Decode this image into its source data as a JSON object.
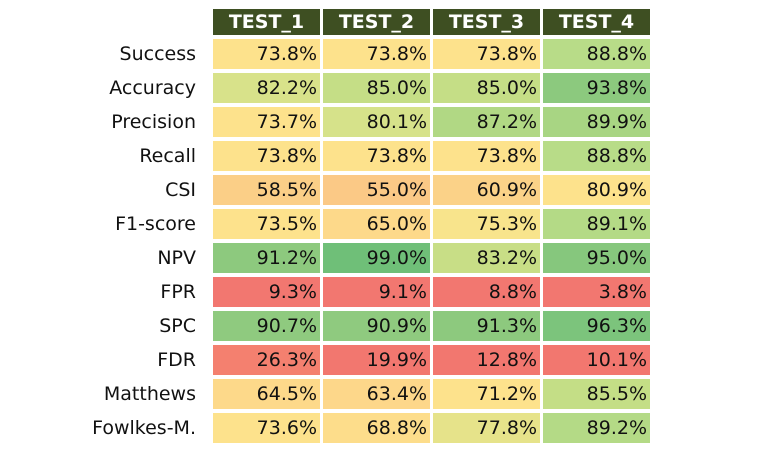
{
  "columns": [
    "TEST_1",
    "TEST_2",
    "TEST_3",
    "TEST_4"
  ],
  "colors": {
    "header_bg": "#3e4f22",
    "low_red": "#f8696b",
    "mid_yellow": "#ffe08c",
    "high_green": "#63be7b"
  },
  "rows": [
    {
      "label": "Success",
      "values": [
        "73.8%",
        "73.8%",
        "73.8%",
        "88.8%"
      ],
      "colors": [
        "#fde28c",
        "#fde28c",
        "#fde28c",
        "#b8dc88"
      ]
    },
    {
      "label": "Accuracy",
      "values": [
        "82.2%",
        "85.0%",
        "85.0%",
        "93.8%"
      ],
      "colors": [
        "#d8e28a",
        "#c5de86",
        "#c5de86",
        "#8cc97e"
      ]
    },
    {
      "label": "Precision",
      "values": [
        "73.7%",
        "80.1%",
        "87.2%",
        "89.9%"
      ],
      "colors": [
        "#fde28c",
        "#d6e28a",
        "#b1d884",
        "#a8d583"
      ]
    },
    {
      "label": "Recall",
      "values": [
        "73.8%",
        "73.8%",
        "73.8%",
        "88.8%"
      ],
      "colors": [
        "#fde28c",
        "#fde28c",
        "#fde28c",
        "#b8dc88"
      ]
    },
    {
      "label": "CSI",
      "values": [
        "58.5%",
        "55.0%",
        "60.9%",
        "80.9%"
      ],
      "colors": [
        "#fbcf87",
        "#fbc986",
        "#fbd288",
        "#fde28c"
      ]
    },
    {
      "label": "F1-score",
      "values": [
        "73.5%",
        "65.0%",
        "75.3%",
        "89.1%"
      ],
      "colors": [
        "#fde28c",
        "#fdd98a",
        "#f8e48c",
        "#b4da86"
      ]
    },
    {
      "label": "NPV",
      "values": [
        "91.2%",
        "99.0%",
        "83.2%",
        "95.0%"
      ],
      "colors": [
        "#8dc97e",
        "#6fbf78",
        "#c8de86",
        "#86c77d"
      ]
    },
    {
      "label": "FPR",
      "values": [
        "9.3%",
        "9.1%",
        "8.8%",
        "3.8%"
      ],
      "colors": [
        "#f27770",
        "#f27770",
        "#f27770",
        "#f27770"
      ]
    },
    {
      "label": "SPC",
      "values": [
        "90.7%",
        "90.9%",
        "91.3%",
        "96.3%"
      ],
      "colors": [
        "#8fca7f",
        "#8fca7f",
        "#8dc97e",
        "#7cc47c"
      ]
    },
    {
      "label": "FDR",
      "values": [
        "26.3%",
        "19.9%",
        "12.8%",
        "10.1%"
      ],
      "colors": [
        "#f4806f",
        "#f2776f",
        "#f2776f",
        "#f2776f"
      ]
    },
    {
      "label": "Matthews",
      "values": [
        "64.5%",
        "63.4%",
        "71.2%",
        "85.5%"
      ],
      "colors": [
        "#fdd98a",
        "#fdd78a",
        "#fde28c",
        "#c4de86"
      ]
    },
    {
      "label": "Fowlkes-M.",
      "values": [
        "73.6%",
        "68.8%",
        "77.8%",
        "89.2%"
      ],
      "colors": [
        "#fde28c",
        "#fddd8b",
        "#e6e38a",
        "#b4da86"
      ]
    }
  ]
}
